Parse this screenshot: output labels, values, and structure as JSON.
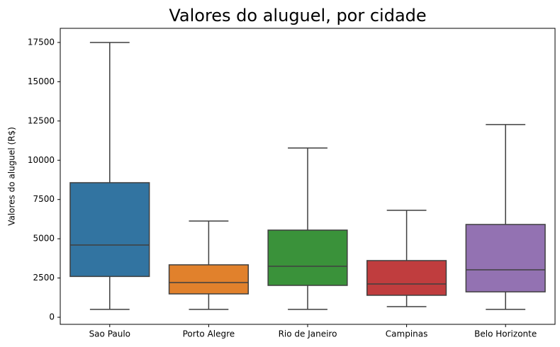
{
  "chart_data": {
    "type": "box",
    "title": "Valores do aluguel, por cidade",
    "y_label": "Valores do aluguel (R$)",
    "categories": [
      "Sao Paulo",
      "Porto Alegre",
      "Rio de Janeiro",
      "Campinas",
      "Belo Horizonte"
    ],
    "whisker_low": [
      500,
      500,
      500,
      680,
      500
    ],
    "q1": [
      2600,
      1490,
      2030,
      1400,
      1620
    ],
    "median": [
      4600,
      2210,
      3250,
      2120,
      3020
    ],
    "q3": [
      8570,
      3340,
      5550,
      3610,
      5910
    ],
    "whisker_high": [
      17500,
      6130,
      10780,
      6810,
      12270
    ],
    "colors": [
      "#3274a1",
      "#e1812c",
      "#3a923a",
      "#c03d3e",
      "#9372b2"
    ],
    "ylim": [
      -450,
      18400
    ],
    "yticks": [
      0,
      2500,
      5000,
      7500,
      10000,
      12500,
      15000,
      17500
    ],
    "grid": false
  }
}
